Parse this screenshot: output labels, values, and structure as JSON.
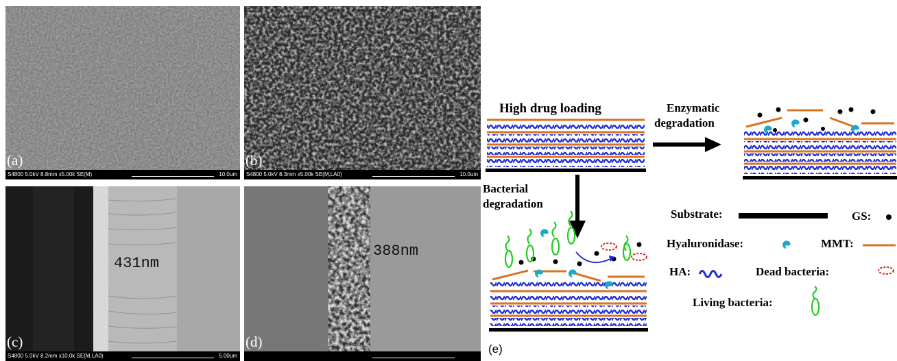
{
  "panels": {
    "a": {
      "letter": "(a)",
      "info": "S4800 5.0kV 8.8mm x5.00k SE(M)",
      "scale": "10.0um"
    },
    "b": {
      "letter": "(b)",
      "info": "S4800 5.0kV 8.3mm x5.00k SE(M,LA0)",
      "scale": "10.0um"
    },
    "c": {
      "letter": "(c)",
      "info": "S4800 5.0kV 8.2mm x10.0k SE(M,LA0)",
      "scale": "5.00um",
      "thickness": "431nm"
    },
    "d": {
      "letter": "(d)",
      "thickness": "388nm"
    }
  },
  "diagram": {
    "panel_letter": "(e)",
    "title": "High drug loading",
    "enzymatic": [
      "Enzymatic",
      "degradation"
    ],
    "bacterial": [
      "Bacterial",
      "degradation"
    ],
    "legend": {
      "substrate": "Substrate:",
      "gs": "GS:",
      "hyaluronidase": "Hyaluronidase:",
      "mmt": "MMT:",
      "ha": "HA:",
      "dead": "Dead bacteria:",
      "living": "Living bacteria:"
    },
    "colors": {
      "mmt": "#d9731f",
      "ha": "#1d2bd6",
      "enzyme": "#1aa9c7",
      "bacteria": "#22cc22",
      "dead": "#e0201c"
    }
  }
}
